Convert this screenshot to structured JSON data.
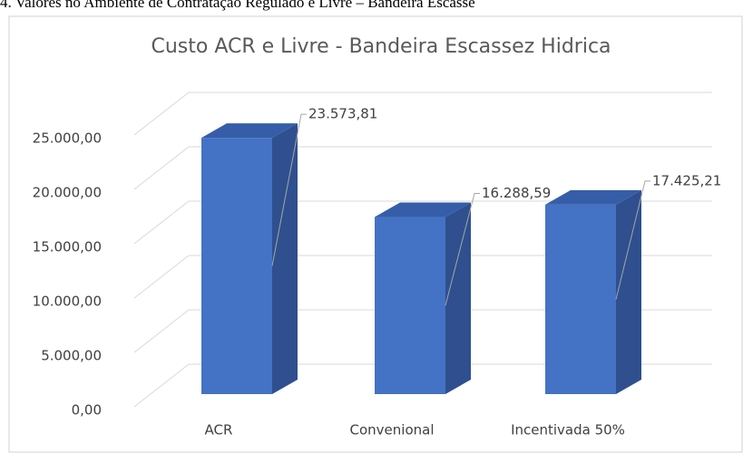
{
  "caption": "4. Valores no Ambiente de Contratação Regulado e Livre – Bandeira Escasse",
  "chart_data": {
    "type": "bar3d",
    "title": "Custo ACR e Livre - Bandeira Escassez Hidrica",
    "categories": [
      "ACR",
      "Convenional",
      "Incentivada 50%"
    ],
    "values": [
      23573.81,
      16288.59,
      17425.21
    ],
    "value_labels": [
      "23.573,81",
      "16.288,59",
      "17.425,21"
    ],
    "color": "#4472c4",
    "ylim": [
      0,
      25000
    ],
    "yticks": [
      {
        "value": 0,
        "label": "0,00"
      },
      {
        "value": 5000,
        "label": "5.000,00"
      },
      {
        "value": 10000,
        "label": "10.000,00"
      },
      {
        "value": 15000,
        "label": "15.000,00"
      },
      {
        "value": 20000,
        "label": "20.000,00"
      },
      {
        "value": 25000,
        "label": "25.000,00"
      }
    ],
    "grid": true
  }
}
